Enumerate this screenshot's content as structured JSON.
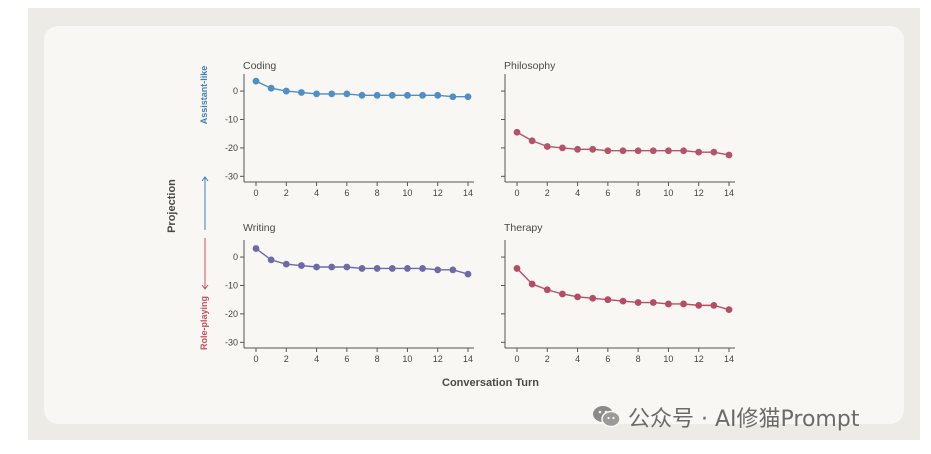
{
  "colors": {
    "coding": "#4e8fc6",
    "philosophy": "#b55468",
    "writing": "#6e6aa8",
    "therapy": "#b54c63",
    "assistant_arrow": "#3f7fc0",
    "roleplay_arrow": "#c8505a",
    "axis": "#555555"
  },
  "labels": {
    "y_axis": "Projection",
    "x_axis": "Conversation Turn",
    "assistant": "Assistant-like",
    "roleplay": "Role-playing"
  },
  "watermark": {
    "icon": "wechat-icon",
    "text": "公众号 · AI修猫Prompt"
  },
  "chart_data": [
    {
      "type": "line",
      "title": "Coding",
      "x": [
        0,
        1,
        2,
        3,
        4,
        5,
        6,
        7,
        8,
        9,
        10,
        11,
        12,
        13,
        14
      ],
      "y": [
        3.5,
        1,
        0,
        -0.5,
        -1,
        -1,
        -1,
        -1.5,
        -1.5,
        -1.5,
        -1.5,
        -1.5,
        -1.5,
        -2,
        -2
      ],
      "ylim": [
        -32,
        6
      ],
      "yticks": [
        0,
        -10,
        -20,
        -30
      ],
      "xticks": [
        0,
        2,
        4,
        6,
        8,
        10,
        12,
        14
      ],
      "show_y_ticks": true
    },
    {
      "type": "line",
      "title": "Philosophy",
      "x": [
        0,
        1,
        2,
        3,
        4,
        5,
        6,
        7,
        8,
        9,
        10,
        11,
        12,
        13,
        14
      ],
      "y": [
        -14.5,
        -17.5,
        -19.5,
        -20,
        -20.5,
        -20.5,
        -21,
        -21,
        -21,
        -21,
        -21,
        -21,
        -21.5,
        -21.5,
        -22.5
      ],
      "ylim": [
        -32,
        6
      ],
      "yticks": [
        0,
        -10,
        -20,
        -30
      ],
      "xticks": [
        0,
        2,
        4,
        6,
        8,
        10,
        12,
        14
      ],
      "show_y_ticks": false
    },
    {
      "type": "line",
      "title": "Writing",
      "x": [
        0,
        1,
        2,
        3,
        4,
        5,
        6,
        7,
        8,
        9,
        10,
        11,
        12,
        13,
        14
      ],
      "y": [
        3,
        -1,
        -2.5,
        -3,
        -3.5,
        -3.5,
        -3.5,
        -4,
        -4,
        -4,
        -4,
        -4,
        -4.5,
        -4.5,
        -6
      ],
      "ylim": [
        -32,
        6
      ],
      "yticks": [
        0,
        -10,
        -20,
        -30
      ],
      "xticks": [
        0,
        2,
        4,
        6,
        8,
        10,
        12,
        14
      ],
      "show_y_ticks": true
    },
    {
      "type": "line",
      "title": "Therapy",
      "x": [
        0,
        1,
        2,
        3,
        4,
        5,
        6,
        7,
        8,
        9,
        10,
        11,
        12,
        13,
        14
      ],
      "y": [
        -4,
        -9.5,
        -11.5,
        -13,
        -14,
        -14.5,
        -15,
        -15.5,
        -16,
        -16,
        -16.5,
        -16.5,
        -17,
        -17,
        -18.5
      ],
      "ylim": [
        -32,
        6
      ],
      "yticks": [
        0,
        -10,
        -20,
        -30
      ],
      "xticks": [
        0,
        2,
        4,
        6,
        8,
        10,
        12,
        14
      ],
      "show_y_ticks": false
    }
  ]
}
